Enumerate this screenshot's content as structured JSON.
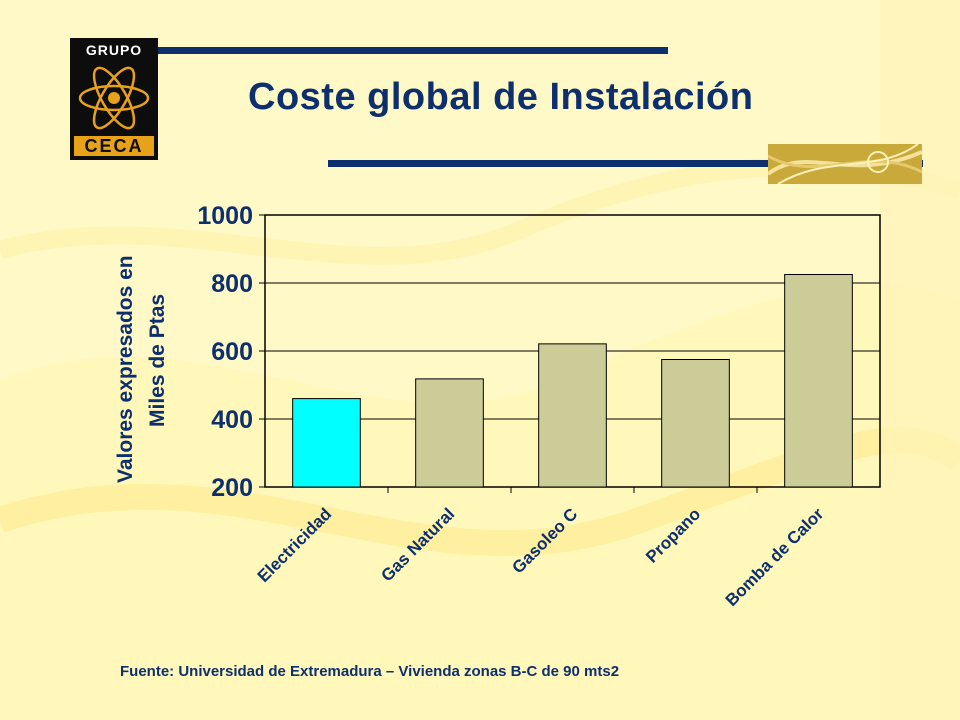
{
  "header": {
    "title": "Coste global de Instalación",
    "logo": {
      "top_text": "GRUPO",
      "bottom_text": "CECA"
    }
  },
  "colors": {
    "background": "#fff9c8",
    "navy": "#0d2f6e",
    "bar_highlight": "#00ffff",
    "bar_default": "#cccc99"
  },
  "chart_data": {
    "type": "bar",
    "categories": [
      "Electricidad",
      "Gas Natural",
      "Gasoleo C",
      "Propano",
      "Bomba de Calor"
    ],
    "values": [
      460,
      518,
      621,
      575,
      825
    ],
    "ylim": [
      200,
      1000
    ],
    "yticks": [
      "1000",
      "800",
      "600",
      "400",
      "200"
    ],
    "ylabel_line1": "Valores expresados en",
    "ylabel_line2": "Miles de Ptas",
    "xlabel": "",
    "grid": true,
    "highlight_index": 0
  },
  "footer": {
    "source": "Fuente: Universidad de Extremadura – Vivienda zonas B-C de 90 mts2"
  }
}
